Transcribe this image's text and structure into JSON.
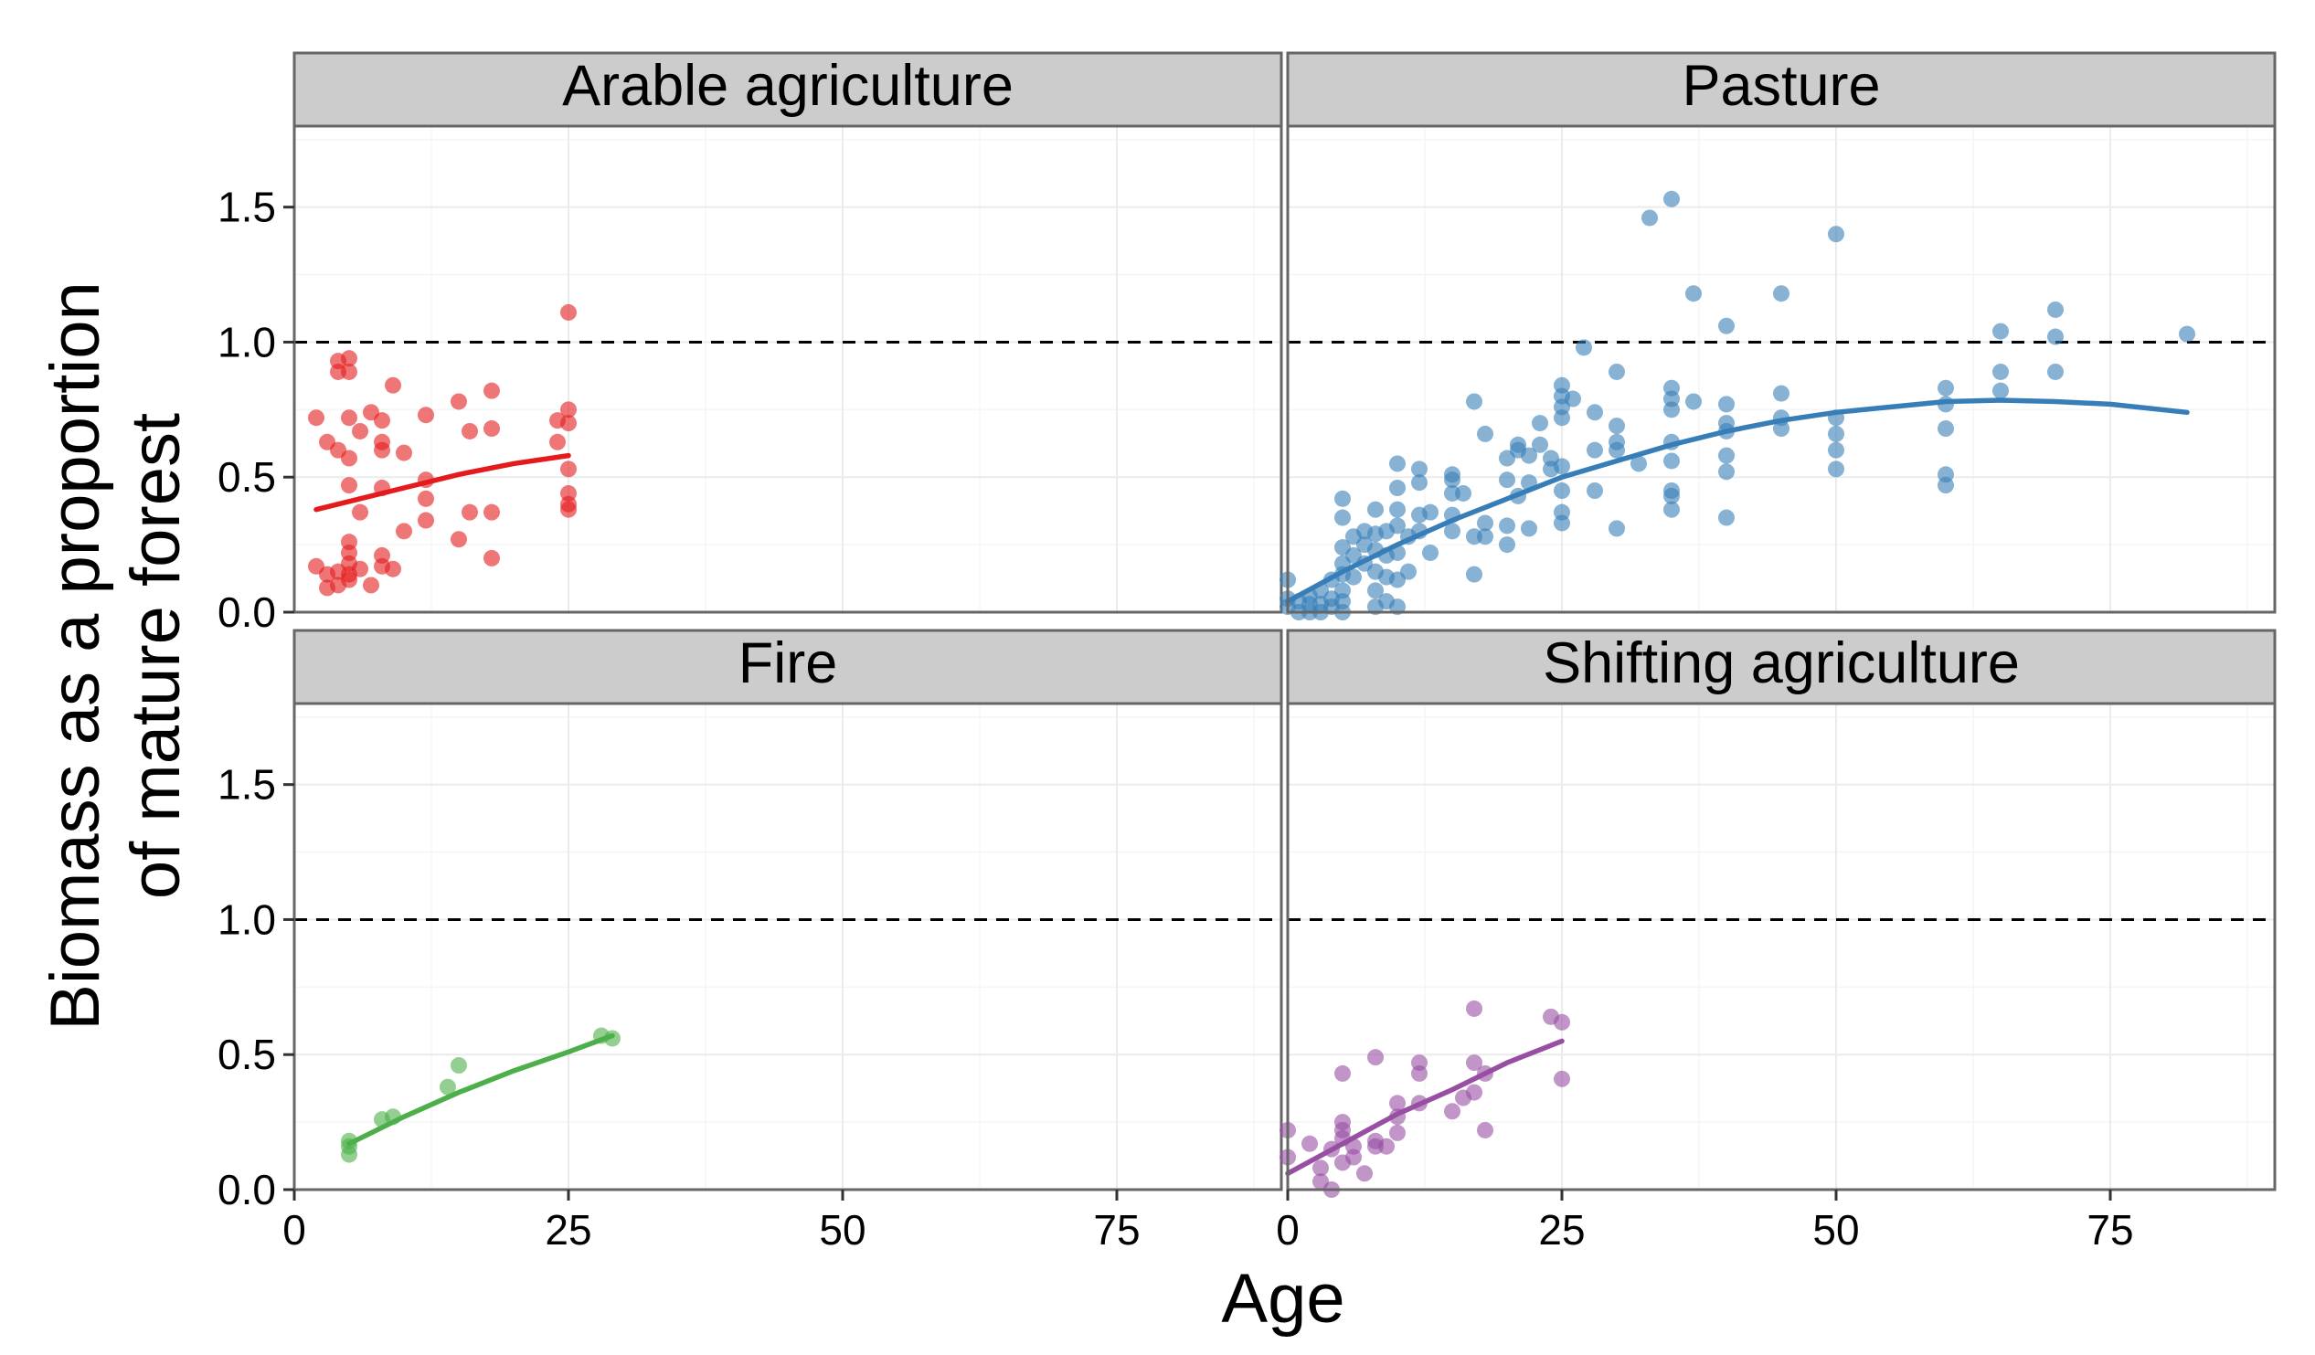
{
  "chart_data": {
    "type": "scatter",
    "layout": "facet-grid-2x2",
    "xlabel": "Age",
    "ylabel_lines": [
      "Biomass as a proportion",
      "of mature forest"
    ],
    "xlim": [
      0,
      90
    ],
    "ylim": [
      0,
      1.8
    ],
    "x_ticks": [
      0,
      25,
      50,
      75
    ],
    "y_ticks": [
      0.0,
      0.5,
      1.0,
      1.5
    ],
    "y_tick_labels": [
      "0.0",
      "0.5",
      "1.0",
      "1.5"
    ],
    "reference_line": {
      "y": 1.0,
      "style": "dashed"
    },
    "grid": true,
    "panels": [
      {
        "name": "Arable agriculture",
        "color": "#E41A1C",
        "points": [
          [
            2,
            0.72
          ],
          [
            2,
            0.17
          ],
          [
            3,
            0.63
          ],
          [
            3,
            0.09
          ],
          [
            3,
            0.14
          ],
          [
            4,
            0.6
          ],
          [
            4,
            0.15
          ],
          [
            4,
            0.1
          ],
          [
            4,
            0.89
          ],
          [
            4,
            0.93
          ],
          [
            5,
            0.94
          ],
          [
            5,
            0.89
          ],
          [
            5,
            0.72
          ],
          [
            5,
            0.57
          ],
          [
            5,
            0.47
          ],
          [
            5,
            0.26
          ],
          [
            5,
            0.22
          ],
          [
            5,
            0.18
          ],
          [
            5,
            0.14
          ],
          [
            5,
            0.12
          ],
          [
            6,
            0.67
          ],
          [
            6,
            0.37
          ],
          [
            6,
            0.16
          ],
          [
            7,
            0.74
          ],
          [
            7,
            0.1
          ],
          [
            8,
            0.71
          ],
          [
            8,
            0.63
          ],
          [
            8,
            0.6
          ],
          [
            8,
            0.46
          ],
          [
            8,
            0.21
          ],
          [
            8,
            0.17
          ],
          [
            9,
            0.84
          ],
          [
            9,
            0.16
          ],
          [
            10,
            0.59
          ],
          [
            10,
            0.3
          ],
          [
            12,
            0.73
          ],
          [
            12,
            0.49
          ],
          [
            12,
            0.42
          ],
          [
            12,
            0.34
          ],
          [
            15,
            0.78
          ],
          [
            15,
            0.27
          ],
          [
            16,
            0.67
          ],
          [
            16,
            0.37
          ],
          [
            18,
            0.82
          ],
          [
            18,
            0.68
          ],
          [
            18,
            0.37
          ],
          [
            18,
            0.2
          ],
          [
            25,
            1.11
          ],
          [
            24,
            0.71
          ],
          [
            25,
            0.75
          ],
          [
            25,
            0.7
          ],
          [
            24,
            0.63
          ],
          [
            25,
            0.53
          ],
          [
            25,
            0.44
          ],
          [
            25,
            0.4
          ],
          [
            25,
            0.38
          ]
        ],
        "fit": [
          [
            2,
            0.38
          ],
          [
            5,
            0.41
          ],
          [
            10,
            0.46
          ],
          [
            15,
            0.51
          ],
          [
            20,
            0.55
          ],
          [
            25,
            0.58
          ]
        ]
      },
      {
        "name": "Pasture",
        "color": "#377EB8",
        "points": [
          [
            0,
            0.12
          ],
          [
            0,
            0.05
          ],
          [
            0,
            0.02
          ],
          [
            1,
            0.04
          ],
          [
            1,
            0.0
          ],
          [
            2,
            0.06
          ],
          [
            2,
            0.03
          ],
          [
            2,
            0.0
          ],
          [
            3,
            0.08
          ],
          [
            3,
            0.03
          ],
          [
            3,
            0.0
          ],
          [
            4,
            0.12
          ],
          [
            4,
            0.05
          ],
          [
            4,
            0.02
          ],
          [
            5,
            0.24
          ],
          [
            5,
            0.18
          ],
          [
            5,
            0.14
          ],
          [
            5,
            0.08
          ],
          [
            5,
            0.04
          ],
          [
            5,
            0.0
          ],
          [
            5,
            0.35
          ],
          [
            5,
            0.42
          ],
          [
            6,
            0.28
          ],
          [
            6,
            0.21
          ],
          [
            6,
            0.13
          ],
          [
            7,
            0.3
          ],
          [
            7,
            0.25
          ],
          [
            7,
            0.18
          ],
          [
            8,
            0.38
          ],
          [
            8,
            0.29
          ],
          [
            8,
            0.23
          ],
          [
            8,
            0.15
          ],
          [
            8,
            0.08
          ],
          [
            8,
            0.02
          ],
          [
            9,
            0.3
          ],
          [
            9,
            0.21
          ],
          [
            9,
            0.13
          ],
          [
            9,
            0.04
          ],
          [
            10,
            0.55
          ],
          [
            10,
            0.46
          ],
          [
            10,
            0.38
          ],
          [
            10,
            0.32
          ],
          [
            10,
            0.22
          ],
          [
            10,
            0.12
          ],
          [
            10,
            0.02
          ],
          [
            11,
            0.28
          ],
          [
            11,
            0.15
          ],
          [
            12,
            0.53
          ],
          [
            12,
            0.48
          ],
          [
            12,
            0.36
          ],
          [
            12,
            0.3
          ],
          [
            13,
            0.37
          ],
          [
            13,
            0.22
          ],
          [
            15,
            0.51
          ],
          [
            15,
            0.49
          ],
          [
            15,
            0.44
          ],
          [
            15,
            0.36
          ],
          [
            15,
            0.3
          ],
          [
            16,
            0.44
          ],
          [
            17,
            0.78
          ],
          [
            17,
            0.28
          ],
          [
            17,
            0.14
          ],
          [
            18,
            0.66
          ],
          [
            18,
            0.33
          ],
          [
            18,
            0.28
          ],
          [
            20,
            0.57
          ],
          [
            20,
            0.49
          ],
          [
            20,
            0.32
          ],
          [
            20,
            0.25
          ],
          [
            21,
            0.62
          ],
          [
            21,
            0.6
          ],
          [
            21,
            0.43
          ],
          [
            22,
            0.58
          ],
          [
            22,
            0.48
          ],
          [
            22,
            0.31
          ],
          [
            23,
            0.7
          ],
          [
            23,
            0.62
          ],
          [
            24,
            0.57
          ],
          [
            24,
            0.53
          ],
          [
            25,
            0.84
          ],
          [
            25,
            0.8
          ],
          [
            25,
            0.76
          ],
          [
            25,
            0.72
          ],
          [
            25,
            0.54
          ],
          [
            25,
            0.45
          ],
          [
            25,
            0.37
          ],
          [
            25,
            0.33
          ],
          [
            26,
            0.79
          ],
          [
            27,
            0.98
          ],
          [
            28,
            0.74
          ],
          [
            28,
            0.6
          ],
          [
            28,
            0.45
          ],
          [
            30,
            0.89
          ],
          [
            30,
            0.69
          ],
          [
            30,
            0.63
          ],
          [
            30,
            0.6
          ],
          [
            30,
            0.31
          ],
          [
            32,
            0.55
          ],
          [
            33,
            1.46
          ],
          [
            35,
            1.53
          ],
          [
            35,
            0.83
          ],
          [
            35,
            0.79
          ],
          [
            35,
            0.75
          ],
          [
            35,
            0.63
          ],
          [
            35,
            0.56
          ],
          [
            35,
            0.45
          ],
          [
            35,
            0.43
          ],
          [
            35,
            0.38
          ],
          [
            37,
            1.18
          ],
          [
            37,
            0.78
          ],
          [
            40,
            1.06
          ],
          [
            40,
            0.77
          ],
          [
            40,
            0.7
          ],
          [
            40,
            0.67
          ],
          [
            40,
            0.58
          ],
          [
            40,
            0.52
          ],
          [
            40,
            0.35
          ],
          [
            45,
            1.18
          ],
          [
            45,
            0.81
          ],
          [
            45,
            0.72
          ],
          [
            45,
            0.68
          ],
          [
            50,
            1.4
          ],
          [
            50,
            0.72
          ],
          [
            50,
            0.66
          ],
          [
            50,
            0.6
          ],
          [
            50,
            0.53
          ],
          [
            60,
            0.83
          ],
          [
            60,
            0.77
          ],
          [
            60,
            0.68
          ],
          [
            60,
            0.51
          ],
          [
            60,
            0.47
          ],
          [
            65,
            1.04
          ],
          [
            65,
            0.89
          ],
          [
            65,
            0.82
          ],
          [
            70,
            1.12
          ],
          [
            70,
            1.02
          ],
          [
            70,
            0.89
          ],
          [
            82,
            1.03
          ]
        ],
        "fit": [
          [
            0,
            0.04
          ],
          [
            5,
            0.15
          ],
          [
            10,
            0.25
          ],
          [
            15,
            0.34
          ],
          [
            20,
            0.42
          ],
          [
            25,
            0.5
          ],
          [
            30,
            0.56
          ],
          [
            35,
            0.62
          ],
          [
            40,
            0.67
          ],
          [
            45,
            0.71
          ],
          [
            50,
            0.74
          ],
          [
            55,
            0.76
          ],
          [
            60,
            0.78
          ],
          [
            65,
            0.785
          ],
          [
            70,
            0.78
          ],
          [
            75,
            0.77
          ],
          [
            82,
            0.74
          ]
        ]
      },
      {
        "name": "Fire",
        "color": "#4DAF4A",
        "points": [
          [
            5,
            0.18
          ],
          [
            5,
            0.16
          ],
          [
            5,
            0.13
          ],
          [
            8,
            0.26
          ],
          [
            9,
            0.27
          ],
          [
            14,
            0.38
          ],
          [
            15,
            0.46
          ],
          [
            28,
            0.57
          ],
          [
            29,
            0.56
          ]
        ],
        "fit": [
          [
            5,
            0.17
          ],
          [
            10,
            0.27
          ],
          [
            15,
            0.36
          ],
          [
            20,
            0.44
          ],
          [
            25,
            0.51
          ],
          [
            29,
            0.57
          ]
        ]
      },
      {
        "name": "Shifting agriculture",
        "color": "#984EA3",
        "points": [
          [
            0,
            0.22
          ],
          [
            0,
            0.12
          ],
          [
            2,
            0.17
          ],
          [
            3,
            0.08
          ],
          [
            3,
            0.03
          ],
          [
            4,
            0.15
          ],
          [
            4,
            0.0
          ],
          [
            5,
            0.43
          ],
          [
            5,
            0.25
          ],
          [
            5,
            0.22
          ],
          [
            5,
            0.19
          ],
          [
            5,
            0.1
          ],
          [
            6,
            0.16
          ],
          [
            6,
            0.12
          ],
          [
            7,
            0.06
          ],
          [
            8,
            0.49
          ],
          [
            8,
            0.18
          ],
          [
            8,
            0.16
          ],
          [
            9,
            0.16
          ],
          [
            10,
            0.32
          ],
          [
            10,
            0.27
          ],
          [
            10,
            0.21
          ],
          [
            12,
            0.47
          ],
          [
            12,
            0.43
          ],
          [
            12,
            0.32
          ],
          [
            15,
            0.29
          ],
          [
            16,
            0.34
          ],
          [
            17,
            0.67
          ],
          [
            17,
            0.47
          ],
          [
            17,
            0.36
          ],
          [
            18,
            0.43
          ],
          [
            18,
            0.22
          ],
          [
            24,
            0.64
          ],
          [
            25,
            0.62
          ],
          [
            25,
            0.41
          ]
        ],
        "fit": [
          [
            0,
            0.06
          ],
          [
            5,
            0.17
          ],
          [
            10,
            0.28
          ],
          [
            15,
            0.37
          ],
          [
            20,
            0.47
          ],
          [
            25,
            0.55
          ]
        ]
      }
    ]
  }
}
